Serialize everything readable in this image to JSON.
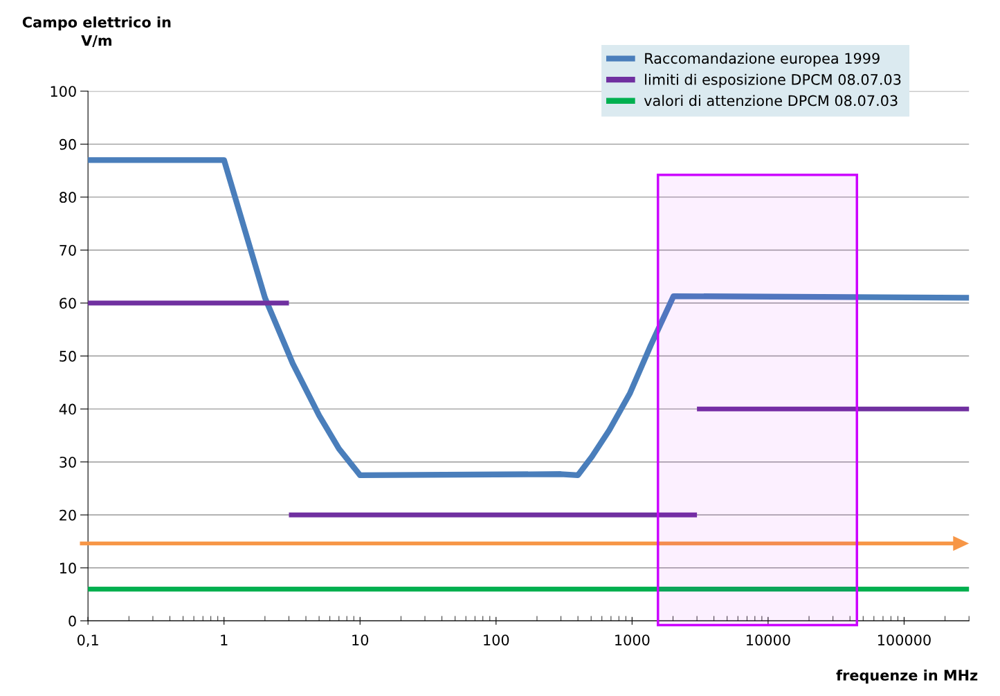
{
  "chart_data": {
    "type": "line",
    "ylabel": "Campo elettrico in\nV/m",
    "xlabel": "frequenze in MHz",
    "log": "x",
    "xlim": [
      0.1,
      300000
    ],
    "xticks": [
      {
        "value": 0.1,
        "label": "0,1"
      },
      1,
      10,
      100,
      1000,
      10000,
      100000
    ],
    "ylim": [
      0,
      100
    ],
    "yticks": [
      0,
      10,
      20,
      30,
      40,
      50,
      60,
      70,
      80,
      90,
      100
    ],
    "grid": "y",
    "legend": "top right",
    "marker": "none",
    "line_style": "solid",
    "series": [
      {
        "name": "Raccomandazione europea 1999",
        "color": "#4a7ebb",
        "x": [
          0.1,
          1,
          2,
          3.2,
          5,
          7,
          10,
          300,
          400,
          507,
          680,
          966,
          1371,
          2018,
          300000
        ],
        "values": [
          87,
          87,
          61,
          48.6,
          38.8,
          32.5,
          27.5,
          27.7,
          27.5,
          31,
          36,
          43,
          52,
          61.3,
          61
        ]
      },
      {
        "name": "limiti di esposizione DPCM 08.07.03",
        "color": "#7030a0",
        "x": [
          0.1,
          3,
          null,
          3,
          3000,
          null,
          3000,
          300000
        ],
        "values": [
          60,
          60,
          null,
          20,
          20,
          null,
          40,
          40
        ]
      },
      {
        "name": "valori di attenzione DPCM 08.07.03",
        "color": "#00b050",
        "x": [
          0.1,
          300000
        ],
        "values": [
          6,
          6
        ]
      }
    ],
    "ref_lines": [
      {
        "axis": "y",
        "value": 14.6,
        "color": "#f79646",
        "line_style": "solid"
      }
    ],
    "bands": [
      {
        "axis": "x",
        "from": 1550,
        "to": 45000,
        "color": "#cc00ff"
      }
    ]
  }
}
